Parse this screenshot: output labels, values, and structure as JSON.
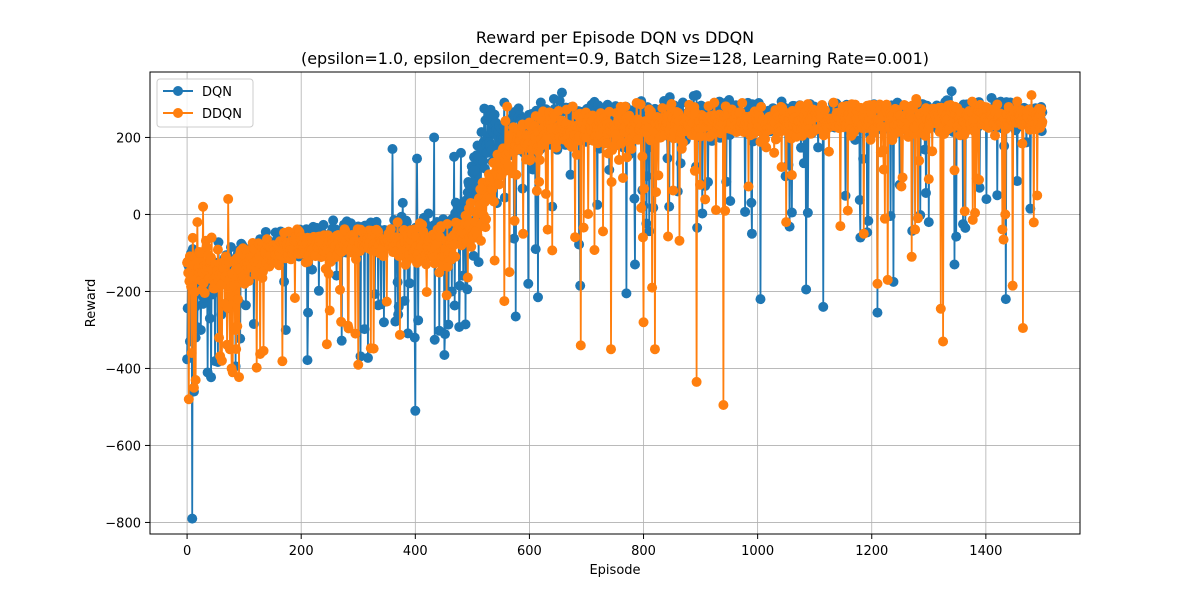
{
  "chart_data": {
    "type": "line",
    "title": "Reward per Episode DQN vs DDQN",
    "subtitle": "(epsilon=1.0, epsilon_decrement=0.9, Batch Size=128, Learning Rate=0.001)",
    "xlabel": "Episode",
    "ylabel": "Reward",
    "xlim": [
      -65,
      1565
    ],
    "ylim": [
      -830,
      370
    ],
    "x_ticks": [
      0,
      200,
      400,
      600,
      800,
      1000,
      1200,
      1400
    ],
    "y_ticks": [
      -800,
      -600,
      -400,
      -200,
      0,
      200
    ],
    "grid": true,
    "legend_position": "upper-left",
    "episodes": 1500,
    "series": [
      {
        "name": "DQN",
        "color": "#1f77b4",
        "marker": "circle",
        "anchors": [
          [
            0,
            -130
          ],
          [
            10,
            -110
          ],
          [
            20,
            -180
          ],
          [
            50,
            -150
          ],
          [
            100,
            -120
          ],
          [
            170,
            -80
          ],
          [
            250,
            -60
          ],
          [
            350,
            -50
          ],
          [
            420,
            -60
          ],
          [
            470,
            -40
          ],
          [
            500,
            60
          ],
          [
            520,
            180
          ],
          [
            560,
            200
          ],
          [
            600,
            220
          ],
          [
            700,
            240
          ],
          [
            800,
            245
          ],
          [
            1000,
            250
          ],
          [
            1200,
            255
          ],
          [
            1400,
            260
          ],
          [
            1500,
            250
          ]
        ],
        "noise_anchors": [
          [
            0,
            60
          ],
          [
            150,
            35
          ],
          [
            350,
            35
          ],
          [
            480,
            60
          ],
          [
            520,
            80
          ],
          [
            650,
            55
          ],
          [
            1000,
            35
          ],
          [
            1500,
            30
          ]
        ],
        "dip_anchors": [
          [
            0,
            0.15
          ],
          [
            200,
            0.05
          ],
          [
            480,
            0.1
          ],
          [
            600,
            0.1
          ],
          [
            900,
            0.07
          ],
          [
            1500,
            0.05
          ]
        ],
        "seed": 11,
        "overrides": [
          [
            9,
            -790
          ],
          [
            12,
            -460
          ],
          [
            15,
            -320
          ],
          [
            24,
            -300
          ],
          [
            40,
            -270
          ],
          [
            60,
            -260
          ],
          [
            173,
            -300
          ],
          [
            212,
            -255
          ],
          [
            345,
            -280
          ],
          [
            360,
            170
          ],
          [
            370,
            -260
          ],
          [
            378,
            30
          ],
          [
            399,
            -320
          ],
          [
            400,
            -510
          ],
          [
            403,
            145
          ],
          [
            405,
            -275
          ],
          [
            433,
            200
          ],
          [
            468,
            150
          ],
          [
            480,
            160
          ],
          [
            521,
            275
          ],
          [
            576,
            -265
          ],
          [
            598,
            -180
          ],
          [
            611,
            -90
          ],
          [
            615,
            -215
          ],
          [
            643,
            300
          ],
          [
            689,
            -185
          ],
          [
            770,
            -205
          ],
          [
            785,
            -130
          ],
          [
            860,
            60
          ],
          [
            893,
            310
          ],
          [
            945,
            85
          ],
          [
            990,
            -50
          ],
          [
            1005,
            -220
          ],
          [
            1085,
            -195
          ],
          [
            1115,
            -240
          ],
          [
            1180,
            -60
          ],
          [
            1210,
            -255
          ],
          [
            1238,
            -175
          ],
          [
            1300,
            -20
          ],
          [
            1340,
            320
          ],
          [
            1345,
            -130
          ],
          [
            1360,
            -25
          ],
          [
            1420,
            50
          ],
          [
            1435,
            -220
          ],
          [
            1478,
            15
          ]
        ]
      },
      {
        "name": "DDQN",
        "color": "#ff7f0e",
        "marker": "circle",
        "anchors": [
          [
            0,
            -150
          ],
          [
            20,
            -140
          ],
          [
            60,
            -160
          ],
          [
            100,
            -130
          ],
          [
            170,
            -80
          ],
          [
            250,
            -80
          ],
          [
            350,
            -70
          ],
          [
            450,
            -90
          ],
          [
            500,
            -40
          ],
          [
            530,
            60
          ],
          [
            560,
            160
          ],
          [
            600,
            200
          ],
          [
            700,
            225
          ],
          [
            800,
            235
          ],
          [
            1000,
            240
          ],
          [
            1200,
            245
          ],
          [
            1400,
            250
          ],
          [
            1500,
            250
          ]
        ],
        "noise_anchors": [
          [
            0,
            70
          ],
          [
            150,
            35
          ],
          [
            350,
            40
          ],
          [
            480,
            55
          ],
          [
            540,
            70
          ],
          [
            700,
            45
          ],
          [
            1500,
            35
          ]
        ],
        "dip_anchors": [
          [
            0,
            0.15
          ],
          [
            200,
            0.04
          ],
          [
            480,
            0.06
          ],
          [
            600,
            0.07
          ],
          [
            900,
            0.07
          ],
          [
            1500,
            0.06
          ]
        ],
        "seed": 29,
        "overrides": [
          [
            3,
            -480
          ],
          [
            8,
            -360
          ],
          [
            12,
            -450
          ],
          [
            15,
            -430
          ],
          [
            18,
            -20
          ],
          [
            28,
            20
          ],
          [
            43,
            -60
          ],
          [
            56,
            -320
          ],
          [
            61,
            -380
          ],
          [
            72,
            40
          ],
          [
            75,
            -350
          ],
          [
            78,
            -400
          ],
          [
            80,
            -410
          ],
          [
            84,
            -300
          ],
          [
            88,
            -290
          ],
          [
            455,
            -210
          ],
          [
            556,
            -225
          ],
          [
            561,
            280
          ],
          [
            690,
            -340
          ],
          [
            743,
            -350
          ],
          [
            800,
            -280
          ],
          [
            815,
            -190
          ],
          [
            820,
            -350
          ],
          [
            893,
            -435
          ],
          [
            940,
            -495
          ],
          [
            1050,
            -20
          ],
          [
            1158,
            10
          ],
          [
            1186,
            -50
          ],
          [
            1210,
            -180
          ],
          [
            1228,
            -170
          ],
          [
            1270,
            -110
          ],
          [
            1278,
            300
          ],
          [
            1321,
            -245
          ],
          [
            1325,
            -330
          ],
          [
            1388,
            90
          ],
          [
            1447,
            -185
          ],
          [
            1465,
            -295
          ],
          [
            1480,
            310
          ]
        ]
      }
    ]
  }
}
